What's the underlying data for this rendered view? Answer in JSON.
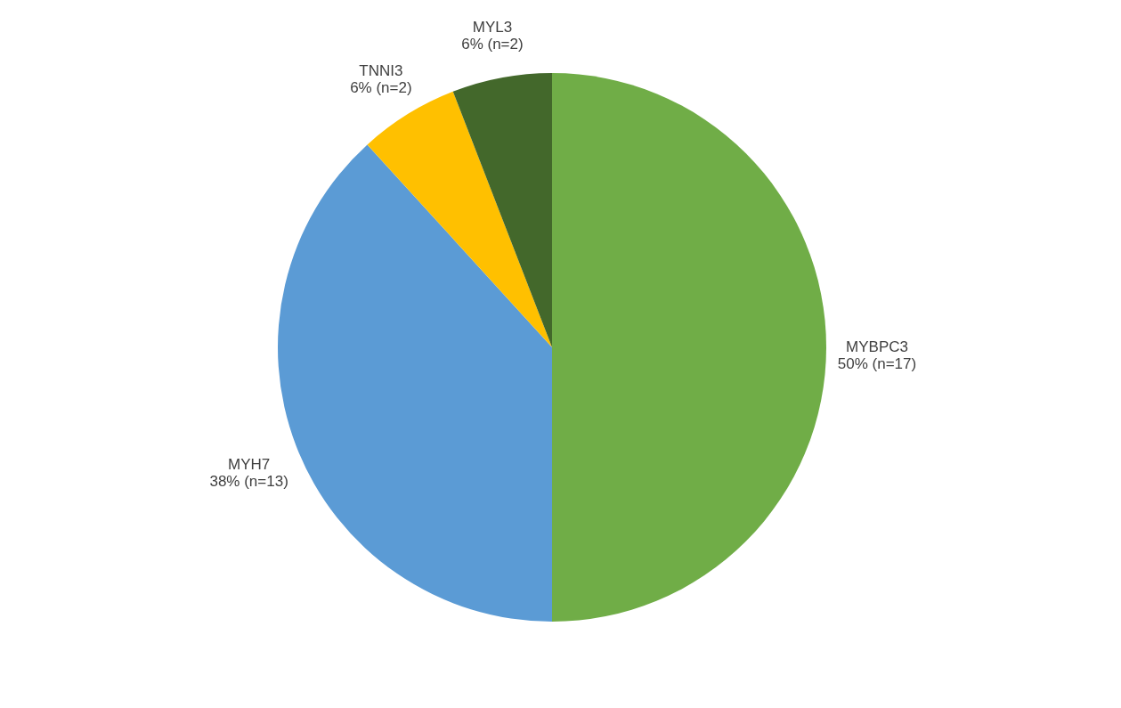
{
  "chart_data": {
    "type": "pie",
    "categories": [
      "MYBPC3",
      "MYH7",
      "TNNI3",
      "MYL3"
    ],
    "values": [
      17,
      13,
      2,
      2
    ],
    "value_labels": [
      "50% (n=17)",
      "38% (n=13)",
      "6% (n=2)",
      "6% (n=2)"
    ],
    "colors": [
      "#70ad47",
      "#5b9bd5",
      "#ffc000",
      "#43682b"
    ],
    "legend": false
  }
}
